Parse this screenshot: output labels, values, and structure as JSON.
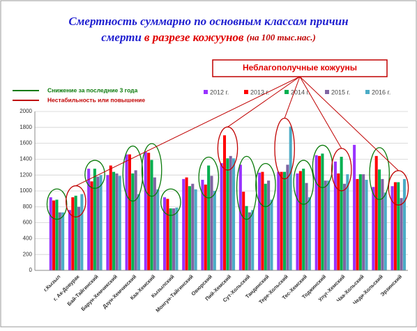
{
  "chart_data": {
    "type": "bar",
    "title_parts": [
      "Смертность суммарно по основным классам причин",
      "смерти",
      "в разрезе кожуунов",
      "(на 100 тыс.нас.)"
    ],
    "callout": "Неблагополучные кожууны",
    "notes": [
      {
        "label": "Снижение за последние 3 года",
        "color": "#0a7a0a"
      },
      {
        "label": "Нестабильность или повышение",
        "color": "#c00000"
      }
    ],
    "categories": [
      "г.Кызыл",
      "г. Ак-Довурак",
      "Бай-Тайгинский",
      "Барун-Хемчикский",
      "Дзун-Хемчикский",
      "Каа-Хемский",
      "Кызылский",
      "Монгун-Тайгинский",
      "Овюрский",
      "Пий-Хемский",
      "Сут-Хольский",
      "Тандинский",
      "Тере-Хольский",
      "Тес-Хемский",
      "Тоджинский",
      "Улуг-Хемский",
      "Чаа-Хольский",
      "Чеди-Хольский",
      "Эрзинский"
    ],
    "series": [
      {
        "name": "2012 г.",
        "color": "#9933ff",
        "values": [
          920,
          760,
          1280,
          1200,
          1460,
          1490,
          920,
          1150,
          1140,
          1350,
          1330,
          1230,
          1240,
          1220,
          1450,
          1370,
          1580,
          1050,
          1060
        ]
      },
      {
        "name": "2013 г.",
        "color": "#ff0000",
        "values": [
          880,
          920,
          1120,
          1320,
          1460,
          1480,
          900,
          1170,
          1080,
          1700,
          990,
          1240,
          1240,
          1250,
          1440,
          1220,
          1150,
          1440,
          1110
        ]
      },
      {
        "name": "2014 г.",
        "color": "#00b050",
        "values": [
          890,
          940,
          1280,
          1240,
          1220,
          1390,
          780,
          1060,
          1320,
          1410,
          810,
          1090,
          1240,
          1280,
          1470,
          1430,
          1210,
          1270,
          1110
        ]
      },
      {
        "name": "2015 г.",
        "color": "#8064a2",
        "values": [
          730,
          800,
          1180,
          1220,
          1260,
          1170,
          780,
          1090,
          1190,
          1440,
          730,
          1130,
          1330,
          1100,
          1130,
          1090,
          1210,
          1150,
          910
        ]
      },
      {
        "name": "2016 г.",
        "color": "#4bacc6",
        "values": [
          730,
          960,
          1200,
          1190,
          960,
          1020,
          790,
          1020,
          1000,
          1410,
          760,
          890,
          1810,
          920,
          1130,
          1210,
          1140,
          980,
          1150
        ]
      }
    ],
    "ylim": [
      0,
      2000
    ],
    "yticks": [
      0,
      200,
      400,
      600,
      800,
      1000,
      1200,
      1400,
      1600,
      1800,
      2000
    ],
    "grid": true
  }
}
